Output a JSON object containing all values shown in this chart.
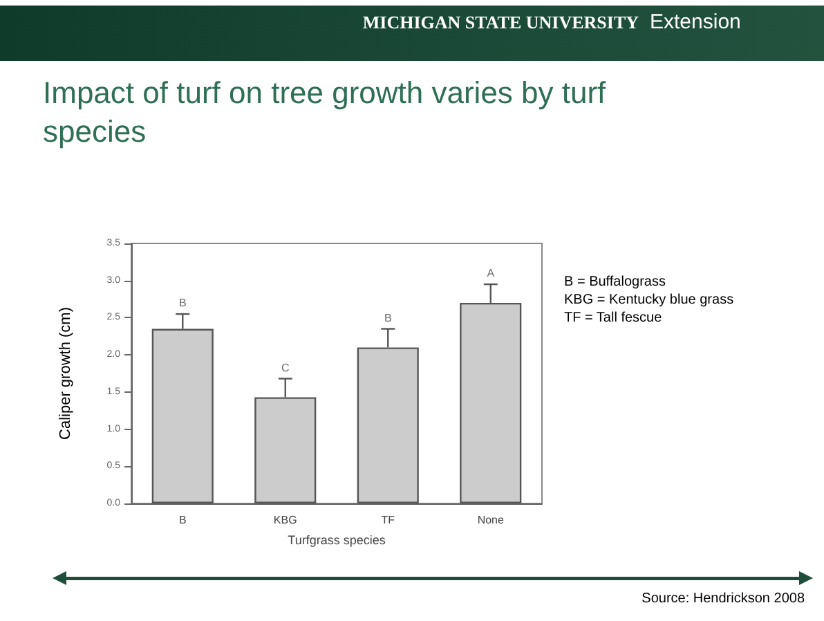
{
  "chart_data": {
    "type": "bar",
    "title": "Impact of turf on tree growth varies by turf species",
    "xlabel": "Turfgrass species",
    "ylabel": "Caliper growth (cm)",
    "categories": [
      "B",
      "KBG",
      "TF",
      "None"
    ],
    "values": [
      2.35,
      1.43,
      2.1,
      2.7
    ],
    "errors": [
      [
        2.35,
        2.55
      ],
      [
        1.43,
        1.68
      ],
      [
        2.1,
        2.35
      ],
      [
        2.7,
        2.95
      ]
    ],
    "color": "#cccccc",
    "ylim": [
      0,
      3.5
    ],
    "yticks": [
      {
        "value": 0,
        "label": "0.0"
      },
      0.5,
      {
        "value": 1,
        "label": "1.0"
      },
      1.5,
      {
        "value": 2,
        "label": "2.0"
      },
      2.5,
      {
        "value": 3,
        "label": "3.0"
      },
      3.5
    ],
    "annotations": [
      "MICHIGAN STATE UNIVERSITY",
      "Extension",
      "B = Buffalograss",
      "KBG = Kentucky blue grass",
      "TF = Tall fescue",
      "Source: Hendrickson 2008",
      "B",
      "C",
      "B",
      "A"
    ]
  }
}
